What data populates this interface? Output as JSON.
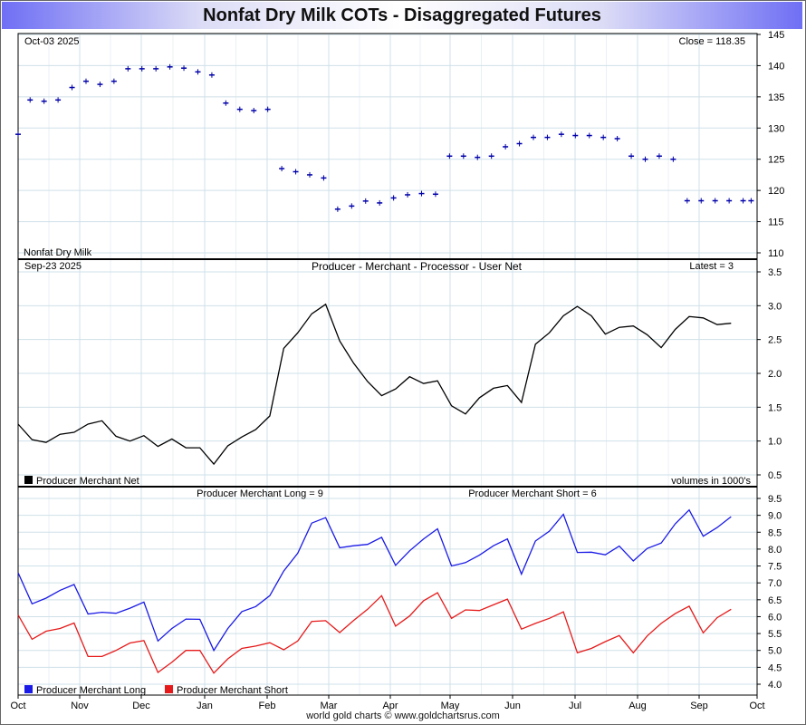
{
  "title": "Nonfat Dry Milk COTs - Disaggregated Futures",
  "footer": "world gold charts © www.goldchartsrus.com",
  "colors": {
    "price": "#0000aa",
    "net": "#000000",
    "long": "#1a1ae6",
    "short": "#e61a1a",
    "grid": "#cfe0e8"
  },
  "chart_data": [
    {
      "type": "line",
      "name": "price",
      "date_label": "Oct-03  2025",
      "stat_label": "Close = 118.35",
      "legend": "Nonfat Dry Milk",
      "ylim": [
        110,
        145
      ],
      "yticks": [
        110,
        115,
        120,
        125,
        130,
        135,
        140,
        145
      ],
      "x": [
        "2024-10-01",
        "2024-10-07",
        "2024-10-14",
        "2024-10-21",
        "2024-10-28",
        "2024-11-04",
        "2024-11-11",
        "2024-11-18",
        "2024-11-25",
        "2024-12-02",
        "2024-12-09",
        "2024-12-16",
        "2024-12-23",
        "2024-12-30",
        "2025-01-06",
        "2025-01-13",
        "2025-01-20",
        "2025-01-27",
        "2025-02-03",
        "2025-02-10",
        "2025-02-17",
        "2025-02-24",
        "2025-03-03",
        "2025-03-10",
        "2025-03-17",
        "2025-03-24",
        "2025-03-31",
        "2025-04-07",
        "2025-04-14",
        "2025-04-21",
        "2025-04-28",
        "2025-05-05",
        "2025-05-12",
        "2025-05-19",
        "2025-05-26",
        "2025-06-02",
        "2025-06-09",
        "2025-06-16",
        "2025-06-23",
        "2025-06-30",
        "2025-07-07",
        "2025-07-14",
        "2025-07-21",
        "2025-07-28",
        "2025-08-04",
        "2025-08-11",
        "2025-08-18",
        "2025-08-25",
        "2025-09-01",
        "2025-09-08",
        "2025-09-15",
        "2025-09-22",
        "2025-09-29",
        "2025-10-03"
      ],
      "values": [
        129,
        134.5,
        134.3,
        134.5,
        136.5,
        137.5,
        137,
        137.5,
        139.5,
        139.5,
        139.5,
        139.8,
        139.6,
        139,
        138.5,
        134,
        133,
        132.8,
        133,
        123.5,
        123,
        122.5,
        122,
        117,
        117.5,
        118.3,
        118,
        118.8,
        119.3,
        119.5,
        119.4,
        125.5,
        125.5,
        125.3,
        125.5,
        127,
        127.5,
        128.5,
        128.5,
        129,
        128.8,
        128.8,
        128.5,
        128.3,
        125.5,
        125,
        125.5,
        125,
        118.35,
        118.35,
        118.35,
        118.35,
        118.35,
        118.35
      ]
    },
    {
      "type": "line",
      "name": "producer-merchant-net",
      "date_label": "Sep-23  2025",
      "title": "Producer - Merchant - Processor - User Net",
      "stat_label": "Latest = 3",
      "legend": "Producer Merchant Net",
      "note": "volumes in 1000's",
      "ylim": [
        0.4,
        3.6
      ],
      "yticks": [
        0.5,
        1.0,
        1.5,
        2.0,
        2.5,
        3.0,
        3.5
      ],
      "x": [
        "2024-10-01",
        "2024-10-08",
        "2024-10-15",
        "2024-10-22",
        "2024-10-29",
        "2024-11-05",
        "2024-11-12",
        "2024-11-19",
        "2024-11-26",
        "2024-12-03",
        "2024-12-10",
        "2024-12-17",
        "2024-12-24",
        "2024-12-31",
        "2025-01-07",
        "2025-01-14",
        "2025-01-21",
        "2025-01-28",
        "2025-02-04",
        "2025-02-11",
        "2025-02-18",
        "2025-02-25",
        "2025-03-04",
        "2025-03-11",
        "2025-03-18",
        "2025-03-25",
        "2025-04-01",
        "2025-04-08",
        "2025-04-15",
        "2025-04-22",
        "2025-04-29",
        "2025-05-06",
        "2025-05-13",
        "2025-05-20",
        "2025-05-27",
        "2025-06-03",
        "2025-06-10",
        "2025-06-17",
        "2025-06-24",
        "2025-07-01",
        "2025-07-08",
        "2025-07-15",
        "2025-07-22",
        "2025-07-29",
        "2025-08-05",
        "2025-08-12",
        "2025-08-19",
        "2025-08-26",
        "2025-09-02",
        "2025-09-09",
        "2025-09-16",
        "2025-09-23"
      ],
      "values": [
        1.25,
        1.02,
        0.98,
        1.1,
        1.13,
        1.25,
        1.3,
        1.07,
        1.0,
        1.08,
        0.92,
        1.03,
        0.9,
        0.9,
        0.66,
        0.93,
        1.06,
        1.17,
        1.37,
        2.37,
        2.6,
        2.88,
        3.02,
        2.48,
        2.15,
        1.88,
        1.67,
        1.77,
        1.95,
        1.85,
        1.89,
        1.52,
        1.4,
        1.64,
        1.78,
        1.82,
        1.57,
        2.43,
        2.6,
        2.85,
        2.99,
        2.85,
        2.58,
        2.68,
        2.7,
        2.57,
        2.38,
        2.65,
        2.84,
        2.82,
        2.72,
        2.74
      ]
    },
    {
      "type": "line",
      "name": "producer-merchant-long-short",
      "long_label": "Producer Merchant Long = 9",
      "short_label": "Producer Merchant Short = 6",
      "ylim": [
        3.8,
        9.7
      ],
      "yticks": [
        4.0,
        4.5,
        5.0,
        5.5,
        6.0,
        6.5,
        7.0,
        7.5,
        8.0,
        8.5,
        9.0,
        9.5
      ],
      "x_month_labels": [
        "Oct",
        "Nov",
        "Dec",
        "Jan",
        "Feb",
        "Mar",
        "Apr",
        "May",
        "Jun",
        "Jul",
        "Aug",
        "Sep",
        "Oct"
      ],
      "series": [
        {
          "name": "Producer Merchant Long",
          "values": [
            7.3,
            6.38,
            6.55,
            6.78,
            6.95,
            6.08,
            6.13,
            6.1,
            6.25,
            6.43,
            5.28,
            5.65,
            5.93,
            5.92,
            5.0,
            5.65,
            6.15,
            6.3,
            6.62,
            7.35,
            7.88,
            8.77,
            8.93,
            8.04,
            8.1,
            8.14,
            8.35,
            7.52,
            7.95,
            8.3,
            8.6,
            7.5,
            7.6,
            7.82,
            8.1,
            8.3,
            7.26,
            8.24,
            8.53,
            9.03,
            7.9,
            7.91,
            7.83,
            8.09,
            7.65,
            8.02,
            8.18,
            8.75,
            9.16,
            8.38,
            8.64,
            8.96
          ]
        },
        {
          "name": "Producer Merchant Short",
          "values": [
            6.05,
            5.33,
            5.57,
            5.65,
            5.81,
            4.82,
            4.82,
            5.0,
            5.22,
            5.29,
            4.35,
            4.65,
            5.0,
            5.0,
            4.33,
            4.75,
            5.06,
            5.13,
            5.23,
            5.02,
            5.28,
            5.86,
            5.88,
            5.53,
            5.89,
            6.22,
            6.62,
            5.72,
            6.02,
            6.47,
            6.71,
            5.95,
            6.2,
            6.18,
            6.35,
            6.52,
            5.63,
            5.8,
            5.95,
            6.14,
            4.93,
            5.06,
            5.26,
            5.44,
            4.93,
            5.43,
            5.8,
            6.09,
            6.31,
            5.52,
            5.97,
            6.22
          ]
        }
      ]
    }
  ]
}
